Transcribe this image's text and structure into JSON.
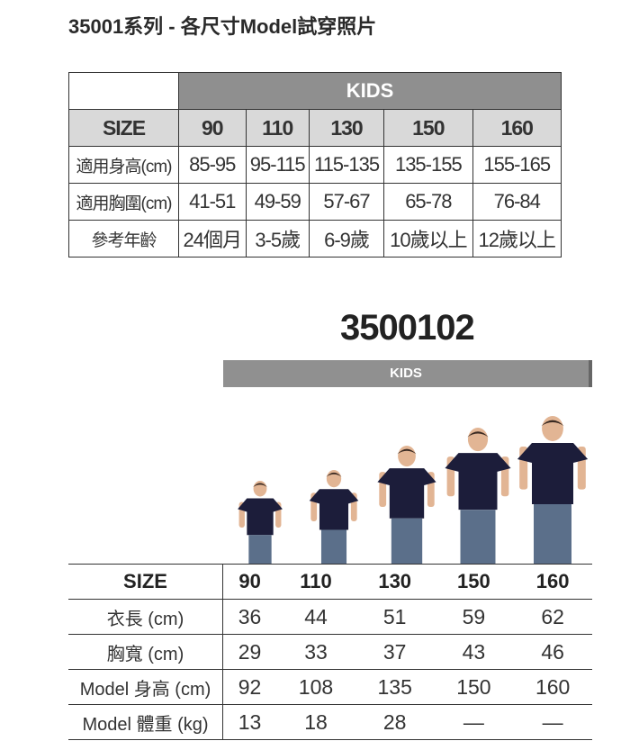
{
  "title": "35001系列 - 各尺寸Model試穿照片",
  "size_table": {
    "group": "KIDS",
    "header": [
      "SIZE",
      "90",
      "110",
      "130",
      "150",
      "160"
    ],
    "rows": [
      [
        "適用身高(cm)",
        "85-95",
        "95-115",
        "115-135",
        "135-155",
        "155-165"
      ],
      [
        "適用胸圍(cm)",
        "41-51",
        "49-59",
        "57-67",
        "65-78",
        "76-84"
      ],
      [
        "參考年齡",
        "24個月",
        "3-5歲",
        "6-9歲",
        "10歲以上",
        "12歲以上"
      ]
    ]
  },
  "model_section": {
    "model_number": "3500102",
    "group": "KIDS",
    "header": [
      "SIZE",
      "90",
      "110",
      "130",
      "150",
      "160"
    ],
    "rows": [
      [
        "衣長 (cm)",
        "36",
        "44",
        "51",
        "59",
        "62"
      ],
      [
        "胸寬 (cm)",
        "29",
        "33",
        "37",
        "43",
        "46"
      ],
      [
        "Model 身高 (cm)",
        "92",
        "108",
        "135",
        "150",
        "160"
      ],
      [
        "Model 體重 (kg)",
        "13",
        "18",
        "28",
        "—",
        "—"
      ]
    ]
  },
  "colors": {
    "header_gray": "#8f8f8f",
    "size_row_bg": "#d9d9d9",
    "tshirt_navy": "#1c1d3a",
    "jeans": "#5b6f8a"
  }
}
